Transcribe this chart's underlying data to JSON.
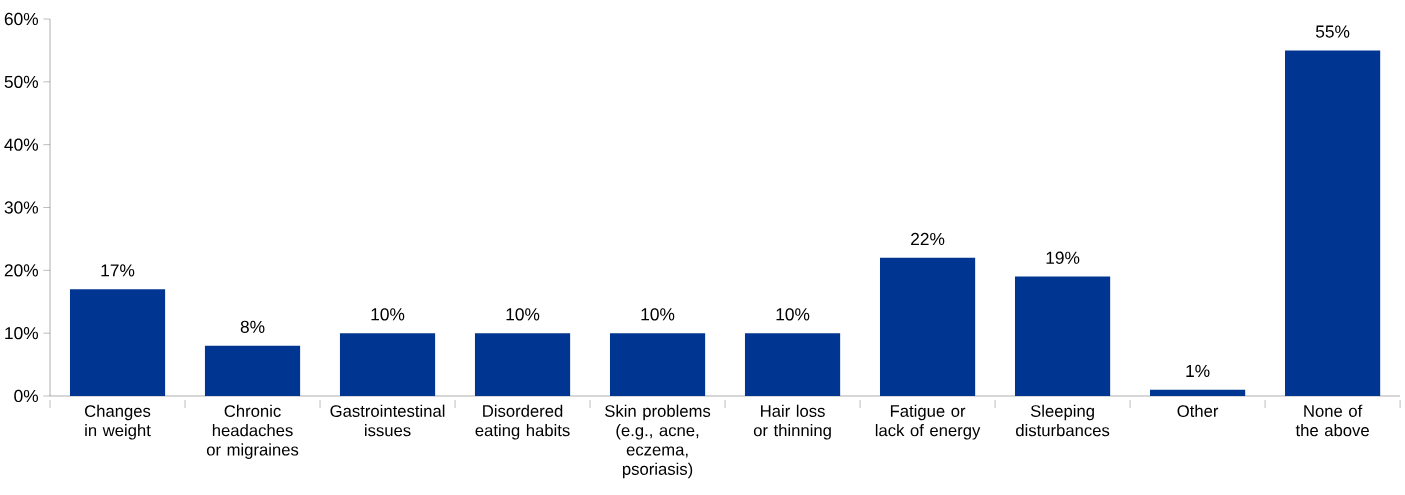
{
  "chart_data": {
    "type": "bar",
    "categories": [
      "Changes in weight",
      "Chronic headaches or migraines",
      "Gastrointestinal issues",
      "Disordered eating habits",
      "Skin problems (e.g., acne, eczema, psoriasis)",
      "Hair loss or thinning",
      "Fatigue or lack of energy",
      "Sleeping disturbances",
      "Other",
      "None of the above"
    ],
    "values": [
      17,
      8,
      10,
      10,
      10,
      10,
      22,
      19,
      1,
      55
    ],
    "value_labels": [
      "17%",
      "8%",
      "10%",
      "10%",
      "10%",
      "10%",
      "22%",
      "19%",
      "1%",
      "55%"
    ],
    "color": "#003591",
    "ylim": [
      0,
      60
    ],
    "yticks": [
      {
        "value": 0,
        "label": "0%"
      },
      {
        "value": 10,
        "label": "10%"
      },
      {
        "value": 20,
        "label": "20%"
      },
      {
        "value": 30,
        "label": "30%"
      },
      {
        "value": 40,
        "label": "40%"
      },
      {
        "value": 50,
        "label": "50%"
      },
      {
        "value": 60,
        "label": "60%"
      }
    ],
    "grid": false
  }
}
